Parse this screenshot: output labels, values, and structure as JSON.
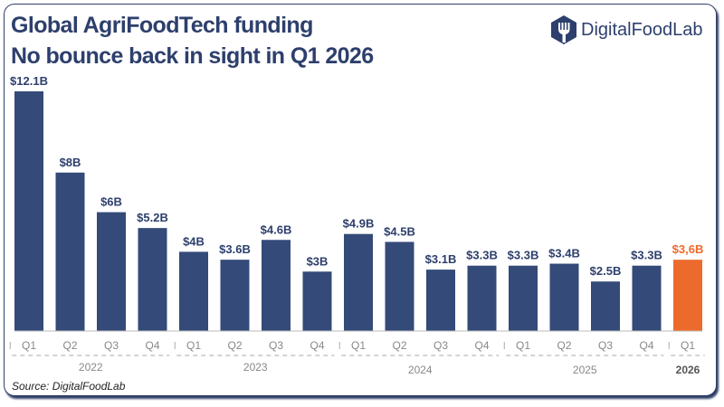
{
  "header": {
    "title_line1": "Global AgriFoodTech funding",
    "title_line2": "No bounce back in sight in Q1 2026",
    "logo_text": "DigitalFoodLab"
  },
  "footer": {
    "source": "Source: DigitalFoodLab"
  },
  "colors": {
    "bar": "#344a78",
    "highlight": "#ec6a2c",
    "title": "#2d3f6c"
  },
  "chart_data": {
    "type": "bar",
    "categories": [
      "Q1",
      "Q2",
      "Q3",
      "Q4",
      "Q1",
      "Q2",
      "Q3",
      "Q4",
      "Q1",
      "Q2",
      "Q3",
      "Q4",
      "Q1",
      "Q2",
      "Q3",
      "Q4",
      "Q1"
    ],
    "years": [
      {
        "label": "2022",
        "start": 0,
        "end": 3
      },
      {
        "label": "2023",
        "start": 4,
        "end": 7
      },
      {
        "label": "2024",
        "start": 8,
        "end": 11
      },
      {
        "label": "2025",
        "start": 12,
        "end": 15
      },
      {
        "label": "2026",
        "start": 16,
        "end": 16
      }
    ],
    "values": [
      12.1,
      8,
      6,
      5.2,
      4,
      3.6,
      4.6,
      3,
      4.9,
      4.5,
      3.1,
      3.3,
      3.3,
      3.4,
      2.5,
      3.3,
      3.6
    ],
    "data_labels": [
      "$12.1B",
      "$8B",
      "$6B",
      "$5.2B",
      "$4B",
      "$3.6B",
      "$4.6B",
      "$3B",
      "$4.9B",
      "$4.5B",
      "$3.1B",
      "$3.3B",
      "$3.3B",
      "$3.4B",
      "$2.5B",
      "$3.3B",
      "$3,6B"
    ],
    "highlight_index": 16,
    "unit": "USD billions",
    "ylim": [
      0,
      12.1
    ],
    "grid": false
  }
}
